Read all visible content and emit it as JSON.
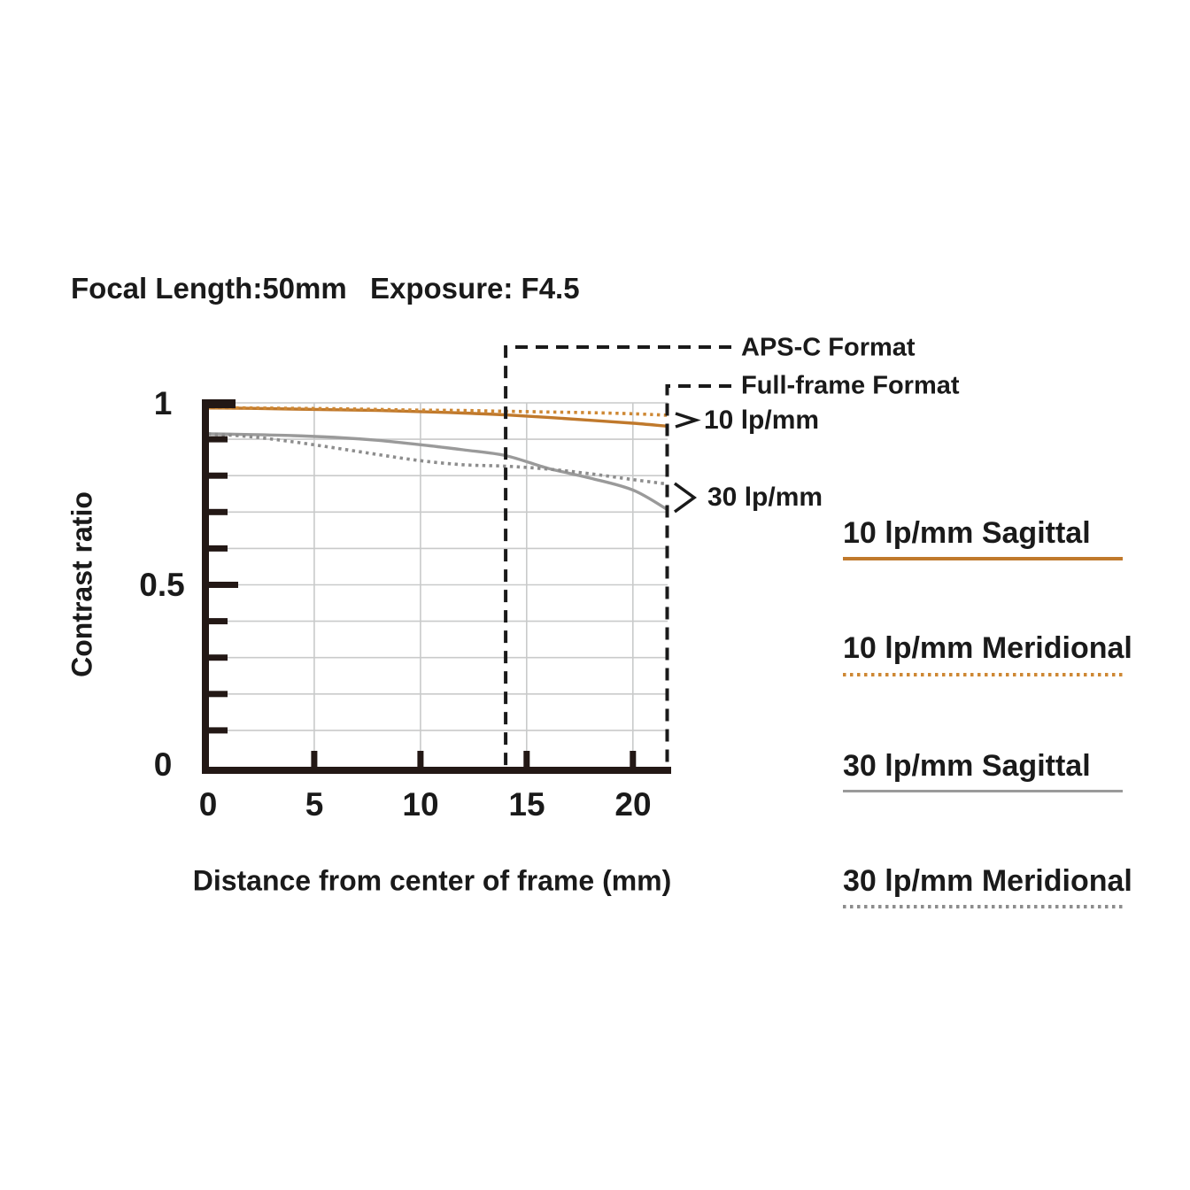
{
  "title": {
    "focal_length": "Focal Length:50mm",
    "exposure": "Exposure: F4.5"
  },
  "axes": {
    "y_label": "Contrast ratio",
    "x_label": "Distance from center of frame (mm)",
    "y_ticks": [
      "1",
      "0.5",
      "0"
    ],
    "x_ticks": [
      "0",
      "5",
      "10",
      "15",
      "20"
    ]
  },
  "format_markers": [
    {
      "label": "APS-C Format",
      "x_mm": 14.0
    },
    {
      "label": "Full-frame Format",
      "x_mm": 21.63
    }
  ],
  "annotations": {
    "lp10": "10 lp/mm",
    "lp30": "30 lp/mm"
  },
  "legend": [
    {
      "label": "10 lp/mm Sagittal",
      "style": "solid",
      "color": "#C0792C"
    },
    {
      "label": "10 lp/mm Meridional",
      "style": "dotted",
      "color": "#CE8834"
    },
    {
      "label": "30 lp/mm Sagittal",
      "style": "solid",
      "color": "#9A9A9A"
    },
    {
      "label": "30 lp/mm Meridional",
      "style": "dotted",
      "color": "#8D8D8D"
    }
  ],
  "colors": {
    "axis": "#231815",
    "grid": "#C9CACA",
    "dashed": "#1A1A1A",
    "text": "#1A1A1A"
  },
  "chart_data": {
    "type": "line",
    "title": "Focal Length:50mm  Exposure: F4.5",
    "xlabel": "Distance from center of frame (mm)",
    "ylabel": "Contrast ratio",
    "xlim": [
      0,
      21.63
    ],
    "ylim": [
      0,
      1
    ],
    "x_tick_values": [
      0,
      5,
      10,
      15,
      20
    ],
    "y_tick_values": [
      0,
      0.5,
      1
    ],
    "y_minor_grid_step": 0.1,
    "grid": "on",
    "legend_position": "right",
    "x": [
      0,
      2,
      4,
      6,
      8,
      10,
      12,
      14,
      16,
      18,
      20,
      21.6
    ],
    "series": [
      {
        "name": "10 lp/mm Sagittal",
        "style": "solid",
        "color": "#C0792C",
        "values": [
          0.986,
          0.985,
          0.983,
          0.981,
          0.979,
          0.976,
          0.972,
          0.967,
          0.96,
          0.952,
          0.944,
          0.936
        ]
      },
      {
        "name": "10 lp/mm Meridional",
        "style": "dotted",
        "color": "#CE8834",
        "values": [
          0.987,
          0.986,
          0.985,
          0.984,
          0.982,
          0.98,
          0.979,
          0.977,
          0.975,
          0.973,
          0.97,
          0.966
        ]
      },
      {
        "name": "30 lp/mm Sagittal",
        "style": "solid",
        "color": "#9A9A9A",
        "values": [
          0.915,
          0.913,
          0.91,
          0.905,
          0.897,
          0.885,
          0.871,
          0.855,
          0.82,
          0.793,
          0.76,
          0.707
        ]
      },
      {
        "name": "30 lp/mm Meridional",
        "style": "dotted",
        "color": "#8D8D8D",
        "values": [
          0.915,
          0.907,
          0.893,
          0.876,
          0.858,
          0.841,
          0.83,
          0.826,
          0.818,
          0.805,
          0.789,
          0.777
        ]
      }
    ],
    "vertical_markers_mm": [
      14.0,
      21.63
    ]
  }
}
